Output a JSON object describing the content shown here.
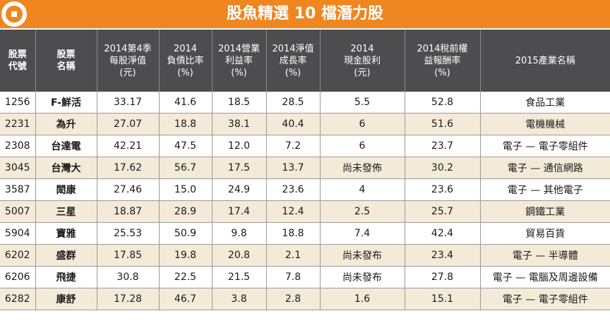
{
  "title": "股魚精選 10 檔潛力股",
  "headers": [
    {
      "lines": [
        "股票",
        "代號"
      ]
    },
    {
      "lines": [
        "股票",
        "名稱"
      ]
    },
    {
      "lines": [
        "2014第4季",
        "每股淨值",
        "(元)"
      ]
    },
    {
      "lines": [
        "2014",
        "負債比率",
        "(%)"
      ]
    },
    {
      "lines": [
        "2014營業",
        "利益率",
        "(%)"
      ]
    },
    {
      "lines": [
        "2014淨值",
        "成長率",
        "(%)"
      ]
    },
    {
      "lines": [
        "2014",
        "現金股利",
        "(元)"
      ]
    },
    {
      "lines": [
        "2014稅前權",
        "益報酬率",
        "(%)"
      ]
    },
    {
      "lines": [
        "2015產業名稱"
      ]
    }
  ],
  "rows": [
    [
      "1256",
      "F-鮮活",
      "33.17",
      "41.6",
      "18.5",
      "28.5",
      "5.5",
      "52.8",
      "食品工業"
    ],
    [
      "2231",
      "為升",
      "27.07",
      "18.8",
      "38.1",
      "40.4",
      "6",
      "51.6",
      "電機機械"
    ],
    [
      "2308",
      "台達電",
      "42.21",
      "47.5",
      "12.0",
      "7.2",
      "6",
      "23.7",
      "電子 — 電子零組件"
    ],
    [
      "3045",
      "台灣大",
      "17.62",
      "56.7",
      "17.5",
      "13.7",
      "尚未發佈",
      "30.2",
      "電子 — 通信網路"
    ],
    [
      "3587",
      "閎康",
      "27.46",
      "15.0",
      "24.9",
      "23.6",
      "4",
      "23.6",
      "電子 — 其他電子"
    ],
    [
      "5007",
      "三星",
      "18.87",
      "28.9",
      "17.4",
      "12.4",
      "2.5",
      "25.7",
      "鋼鐵工業"
    ],
    [
      "5904",
      "寶雅",
      "25.53",
      "50.9",
      "9.8",
      "18.8",
      "7.4",
      "42.4",
      "貿易百貨"
    ],
    [
      "6202",
      "盛群",
      "17.85",
      "19.8",
      "20.8",
      "2.1",
      "尚未發布",
      "23.4",
      "電子 — 半導體"
    ],
    [
      "6206",
      "飛捷",
      "30.8",
      "22.5",
      "21.5",
      "7.8",
      "尚未發布",
      "27.8",
      "電子 — 電腦及周邊設備"
    ],
    [
      "6282",
      "康舒",
      "17.28",
      "46.7",
      "3.8",
      "2.8",
      "1.6",
      "15.1",
      "電子 — 電子零組件"
    ]
  ],
  "colors": {
    "accent": "#f0861f",
    "header_bg": "#4d4d4f",
    "row_shade": "#f4ead8"
  }
}
